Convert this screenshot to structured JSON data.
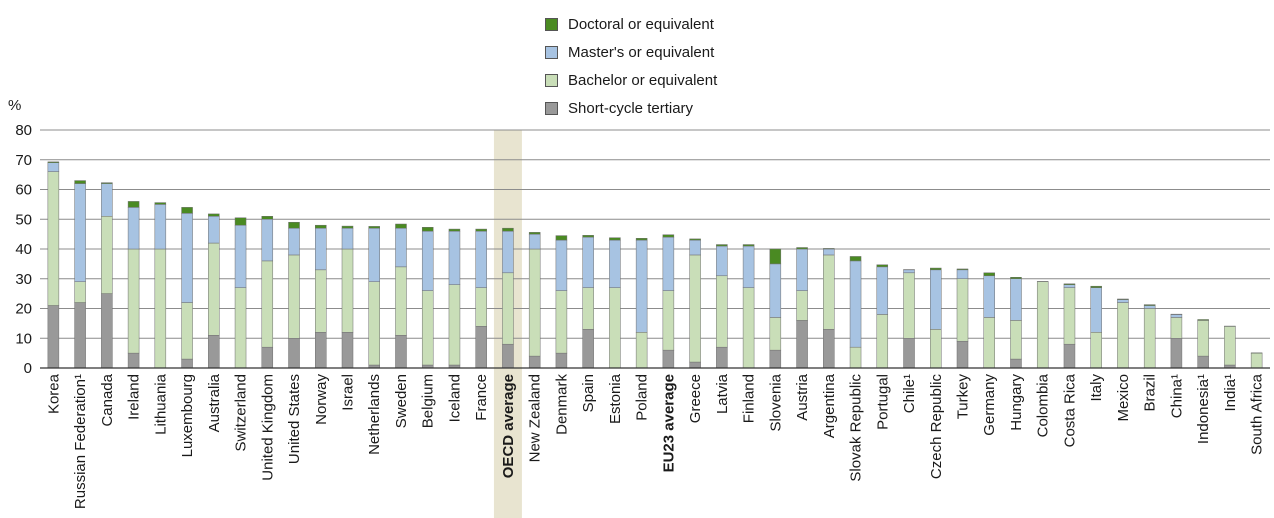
{
  "chart_data": {
    "type": "bar",
    "stacked": true,
    "ylabel": "%",
    "ylim": [
      0,
      80
    ],
    "yticks": [
      0,
      10,
      20,
      30,
      40,
      50,
      60,
      70,
      80
    ],
    "grid": true,
    "legend_position": "top-center",
    "highlight": [
      "OECD average",
      "EU23 average"
    ],
    "categories": [
      "Korea",
      "Russian Federation¹",
      "Canada",
      "Ireland",
      "Lithuania",
      "Luxembourg",
      "Australia",
      "Switzerland",
      "United Kingdom",
      "United States",
      "Norway",
      "Israel",
      "Netherlands",
      "Sweden",
      "Belgium",
      "Iceland",
      "France",
      "OECD average",
      "New Zealand",
      "Denmark",
      "Spain",
      "Estonia",
      "Poland",
      "EU23 average",
      "Greece",
      "Latvia",
      "Finland",
      "Slovenia",
      "Austria",
      "Argentina",
      "Slovak Republic",
      "Portugal",
      "Chile¹",
      "Czech Republic",
      "Turkey",
      "Germany",
      "Hungary",
      "Colombia",
      "Costa Rica",
      "Italy",
      "Mexico",
      "Brazil",
      "China¹",
      "Indonesia¹",
      "India¹",
      "South Africa"
    ],
    "series": [
      {
        "name": "Short-cycle tertiary",
        "color": "#999999",
        "values": [
          21,
          22,
          25,
          5,
          0,
          3,
          11,
          0,
          7,
          10,
          12,
          12,
          1,
          11,
          1,
          1,
          14,
          8,
          4,
          5,
          13,
          0,
          0,
          6,
          2,
          7,
          0,
          6,
          16,
          13,
          0,
          0,
          10,
          0,
          9,
          0,
          3,
          0,
          8,
          0,
          0,
          0,
          10,
          4,
          1,
          0
        ]
      },
      {
        "name": "Bachelor or equivalent",
        "color": "#c9deb8",
        "values": [
          45,
          7,
          26,
          35,
          40,
          19,
          31,
          27,
          29,
          28,
          21,
          28,
          28,
          23,
          25,
          27,
          13,
          24,
          36,
          21,
          14,
          27,
          12,
          20,
          36,
          24,
          27,
          11,
          10,
          25,
          7,
          18,
          22,
          13,
          21,
          17,
          13,
          29,
          19,
          12,
          22,
          20,
          7,
          12,
          13,
          5
        ]
      },
      {
        "name": "Master's or equivalent",
        "color": "#a7c3e2",
        "values": [
          3,
          33,
          11,
          14,
          15,
          30,
          9,
          21,
          14,
          9,
          14,
          7,
          18,
          13,
          20,
          18,
          19,
          14,
          5,
          17,
          17,
          16,
          31,
          18,
          5,
          10,
          14,
          18,
          14,
          2,
          29,
          16,
          1,
          20,
          3,
          14,
          14,
          0,
          1,
          15,
          1,
          1,
          1,
          0,
          0,
          0
        ]
      },
      {
        "name": "Doctoral or equivalent",
        "color": "#4a8a22",
        "values": [
          0.3,
          1,
          0.3,
          2,
          0.6,
          2,
          0.8,
          2.5,
          1,
          2,
          1,
          0.7,
          0.6,
          1.4,
          1.3,
          0.7,
          0.7,
          1,
          0.6,
          1.5,
          0.6,
          0.8,
          0.6,
          0.8,
          0.4,
          0.5,
          0.5,
          5,
          0.5,
          0.2,
          1.5,
          0.7,
          0.1,
          0.6,
          0.3,
          1,
          0.5,
          0.1,
          0.3,
          0.5,
          0.2,
          0.3,
          0.1,
          0.3,
          0.1,
          0.1
        ]
      }
    ]
  },
  "legend": {
    "items": [
      {
        "label": "Doctoral or equivalent",
        "color": "#4a8a22"
      },
      {
        "label": "Master's or equivalent",
        "color": "#a7c3e2"
      },
      {
        "label": "Bachelor or equivalent",
        "color": "#c9deb8"
      },
      {
        "label": "Short-cycle tertiary",
        "color": "#999999"
      }
    ]
  }
}
